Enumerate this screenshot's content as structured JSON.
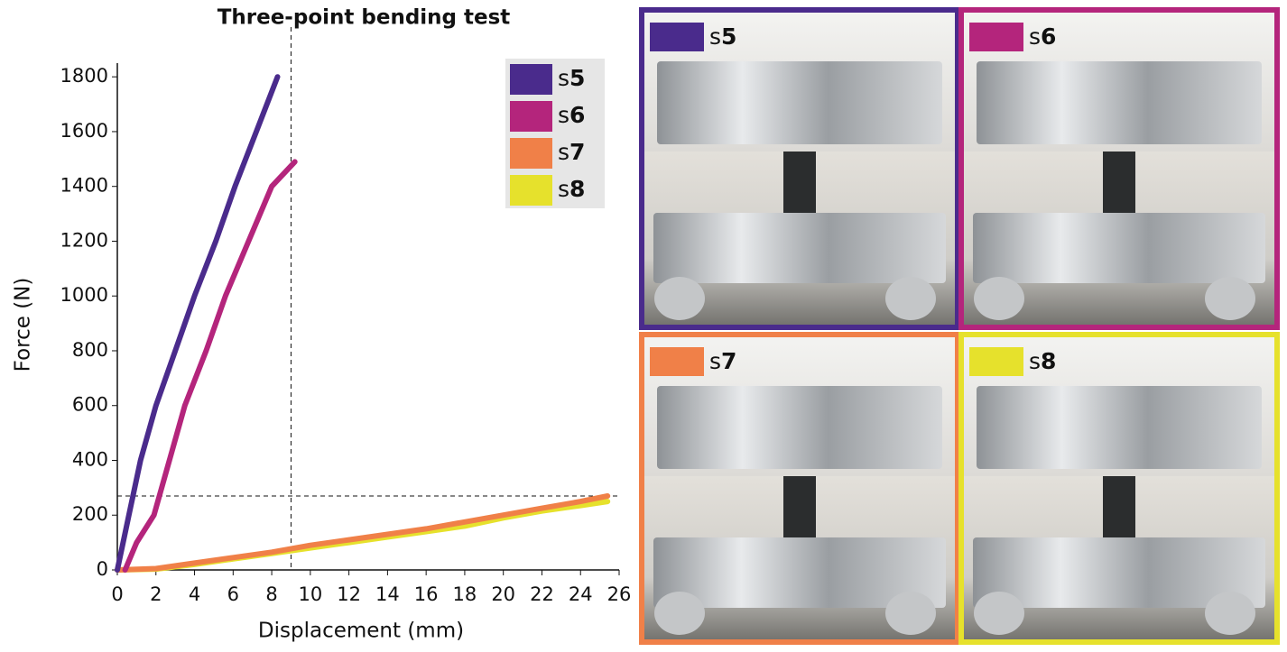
{
  "chart_data": {
    "type": "line",
    "title": "Three-point bending test",
    "x_label": "Displacement (mm)",
    "y_label": "Force (N)",
    "xlim": [
      0,
      26
    ],
    "ylim": [
      0,
      1850
    ],
    "xticks": [
      0,
      2,
      4,
      6,
      8,
      10,
      12,
      14,
      16,
      18,
      20,
      22,
      24,
      26
    ],
    "yticks": [
      0,
      200,
      400,
      600,
      800,
      1000,
      1200,
      1400,
      1600,
      1800
    ],
    "reference_x": 9,
    "reference_y": 270,
    "legend": "upper right",
    "series": [
      {
        "name": "s5",
        "color": "#4a2b8c",
        "x": [
          0,
          0.6,
          1.2,
          2.0,
          3.0,
          4.0,
          5.1,
          6.1,
          7.2,
          8.3
        ],
        "values": [
          0,
          200,
          400,
          600,
          800,
          1000,
          1200,
          1400,
          1600,
          1800
        ]
      },
      {
        "name": "s6",
        "color": "#b4257c",
        "x": [
          0.4,
          1.0,
          1.9,
          2.7,
          3.5,
          4.6,
          5.6,
          6.8,
          8.0,
          9.2
        ],
        "values": [
          0,
          100,
          200,
          400,
          600,
          800,
          1000,
          1200,
          1400,
          1490
        ]
      },
      {
        "name": "s7",
        "color": "#f08048",
        "x": [
          0,
          2,
          4,
          6,
          8,
          10,
          12,
          14,
          16,
          18,
          20,
          22,
          24,
          25.4
        ],
        "values": [
          0,
          5,
          25,
          45,
          65,
          90,
          110,
          130,
          150,
          175,
          200,
          225,
          250,
          270
        ]
      },
      {
        "name": "s8",
        "color": "#e6e12c",
        "x": [
          0,
          2,
          4,
          6,
          8,
          10,
          12,
          14,
          16,
          18,
          20,
          22,
          24,
          25.4
        ],
        "values": [
          0,
          3,
          20,
          40,
          60,
          80,
          100,
          120,
          140,
          160,
          190,
          215,
          235,
          250
        ]
      }
    ]
  },
  "panels": [
    {
      "label": "s5",
      "color": "#4a2b8c"
    },
    {
      "label": "s6",
      "color": "#b4257c"
    },
    {
      "label": "s7",
      "color": "#f08048"
    },
    {
      "label": "s8",
      "color": "#e6e12c"
    }
  ]
}
